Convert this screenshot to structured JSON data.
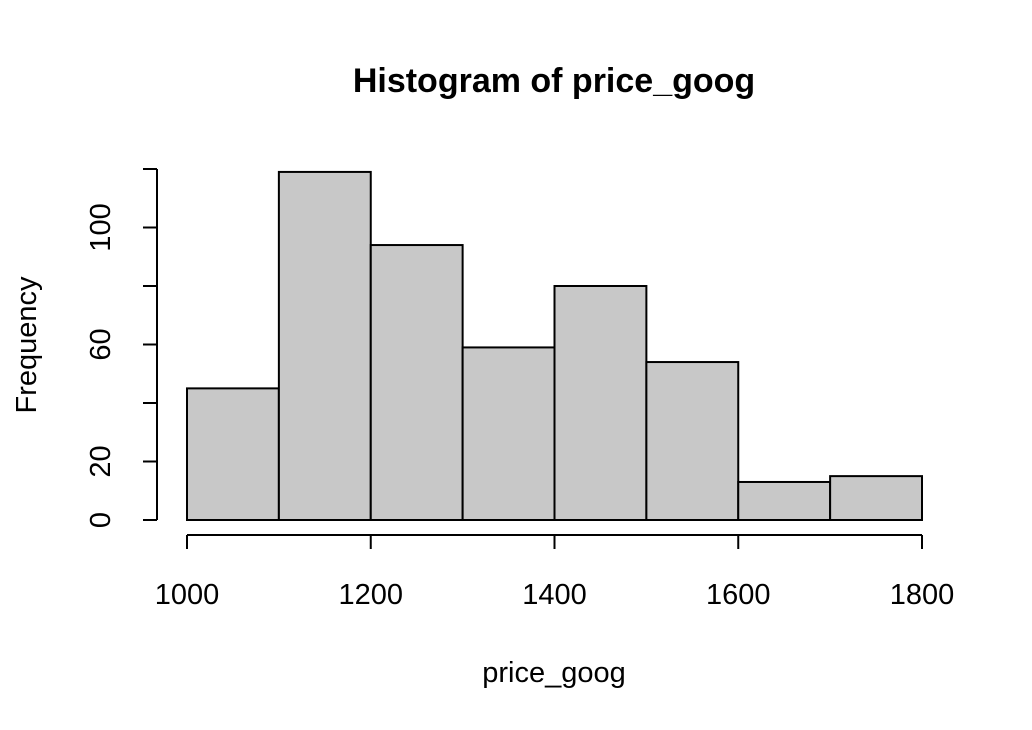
{
  "chart_data": {
    "type": "bar",
    "title": "Histogram of price_goog",
    "xlabel": "price_goog",
    "ylabel": "Frequency",
    "bins": [
      {
        "start": 1000,
        "end": 1100,
        "count": 45
      },
      {
        "start": 1100,
        "end": 1200,
        "count": 119
      },
      {
        "start": 1200,
        "end": 1300,
        "count": 94
      },
      {
        "start": 1300,
        "end": 1400,
        "count": 59
      },
      {
        "start": 1400,
        "end": 1500,
        "count": 80
      },
      {
        "start": 1500,
        "end": 1600,
        "count": 54
      },
      {
        "start": 1600,
        "end": 1700,
        "count": 13
      },
      {
        "start": 1700,
        "end": 1800,
        "count": 15
      }
    ],
    "xlim": [
      1000,
      1800
    ],
    "ylim": [
      0,
      120
    ],
    "x_ticks": [
      1000,
      1200,
      1400,
      1600,
      1800
    ],
    "y_ticks": [
      0,
      20,
      40,
      60,
      80,
      100,
      120
    ],
    "y_tick_labels": [
      "0",
      "20",
      "",
      "60",
      "",
      "100",
      ""
    ],
    "bar_color": "#c8c8c8",
    "grid": false,
    "legend": "none"
  }
}
